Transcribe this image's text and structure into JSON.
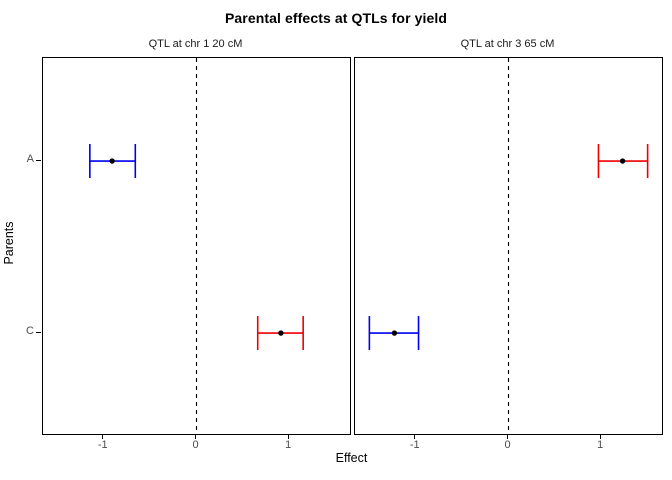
{
  "chart_data": {
    "type": "errorbar-dot",
    "title": "Parental effects at QTLs for yield",
    "xlabel": "Effect",
    "ylabel": "Parents",
    "parents": [
      "A",
      "C"
    ],
    "x_ticks": [
      "-1",
      "0",
      "1"
    ],
    "x_tick_values": [
      -1,
      0,
      1
    ],
    "xlim": [
      -1.655,
      1.655
    ],
    "reference_line_x": 0,
    "grid": false,
    "panels": [
      {
        "strip": "QTL at chr 1 20 cM",
        "points": [
          {
            "parent": "A",
            "estimate": -0.91,
            "lo": -1.15,
            "hi": -0.66,
            "color": "blue"
          },
          {
            "parent": "C",
            "estimate": 0.91,
            "lo": 0.66,
            "hi": 1.15,
            "color": "red"
          }
        ]
      },
      {
        "strip": "QTL at chr 3 65 cM",
        "points": [
          {
            "parent": "A",
            "estimate": 1.23,
            "lo": 0.97,
            "hi": 1.5,
            "color": "red"
          },
          {
            "parent": "C",
            "estimate": -1.23,
            "lo": -1.5,
            "hi": -0.97,
            "color": "blue"
          }
        ]
      }
    ],
    "colors": {
      "blue": "#0000EE",
      "red": "#EE0000",
      "reference_line": "#000000",
      "point": "#000000",
      "axis_text": "#4d4d4d",
      "axis_line": "#000000"
    }
  }
}
